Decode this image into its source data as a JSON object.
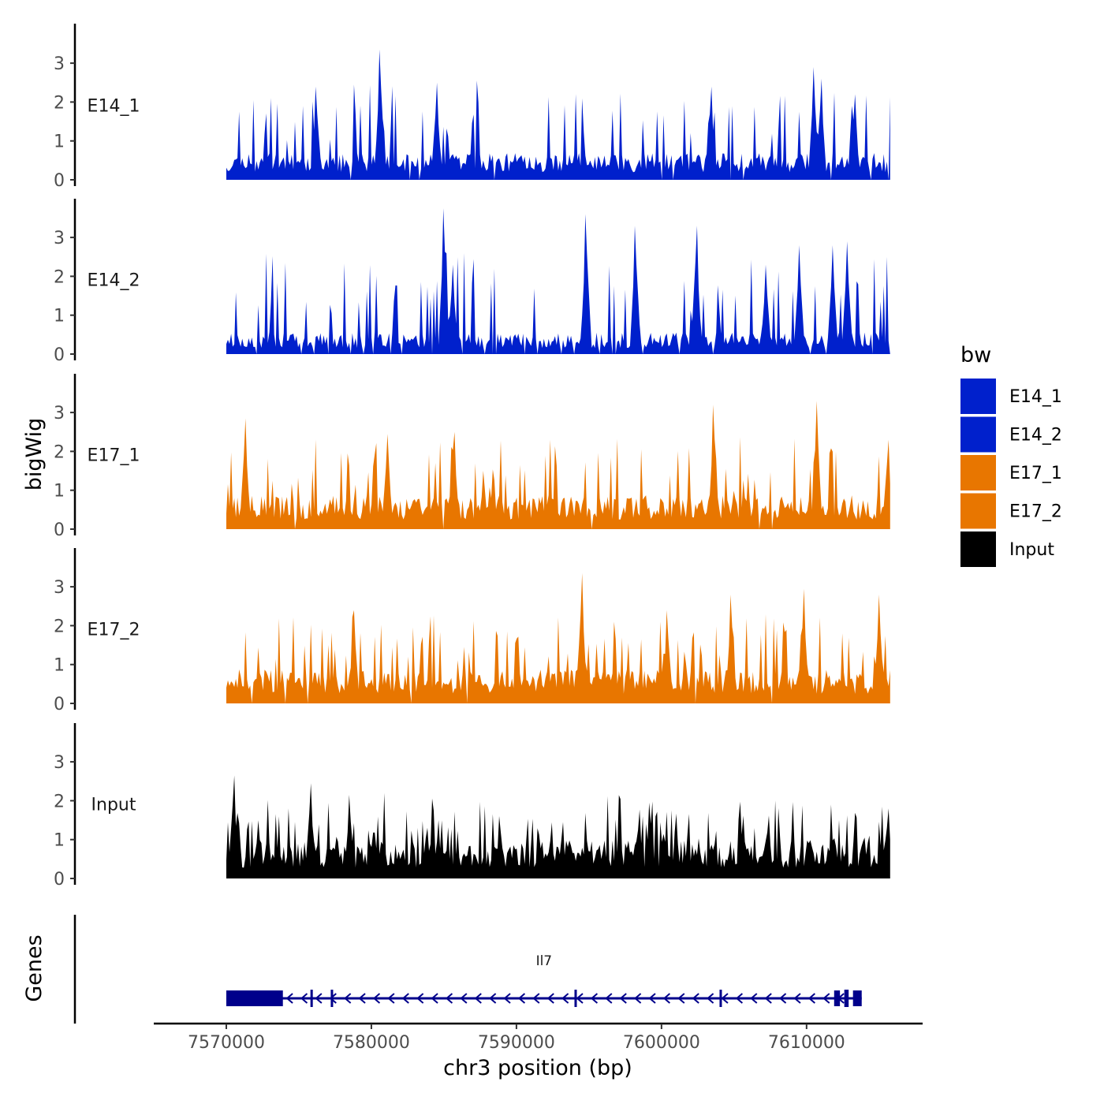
{
  "chart_data": {
    "type": "area",
    "chromosome": "chr3",
    "xlabel": "chr3 position (bp)",
    "ylabel": "bigWig",
    "genes_label": "Genes",
    "xlim": [
      7565000,
      7618000
    ],
    "data_x_range": [
      7570000,
      7615800
    ],
    "ylim": [
      0,
      3.9
    ],
    "x_ticks": [
      {
        "value": 7570000,
        "label": "7570000"
      },
      {
        "value": 7580000,
        "label": "7580000"
      },
      {
        "value": 7590000,
        "label": "7590000"
      },
      {
        "value": 7600000,
        "label": "7600000"
      },
      {
        "value": 7610000,
        "label": "7610000"
      }
    ],
    "y_ticks": [
      {
        "value": 0,
        "label": "0"
      },
      {
        "value": 1,
        "label": "1"
      },
      {
        "value": 2,
        "label": "2"
      },
      {
        "value": 3,
        "label": "3"
      }
    ],
    "legend": {
      "title": "bw",
      "entries": [
        {
          "name": "E14_1",
          "color": "#0020cc"
        },
        {
          "name": "E14_2",
          "color": "#0020cc"
        },
        {
          "name": "E17_1",
          "color": "#e87600"
        },
        {
          "name": "E17_2",
          "color": "#e87600"
        },
        {
          "name": "Input",
          "color": "#000000"
        }
      ]
    },
    "series": [
      {
        "name": "E14_1",
        "color": "#0020cc",
        "seed": 11,
        "base": 0.55,
        "peak_prob": 0.16,
        "peak_height": 1.2,
        "gap_prob": 0.03,
        "peaks": [
          [
            7580600,
            3.35
          ],
          [
            7584500,
            2.5
          ],
          [
            7576200,
            2.4
          ],
          [
            7603400,
            2.4
          ],
          [
            7610500,
            2.9
          ],
          [
            7611000,
            2.6
          ],
          [
            7613300,
            2.2
          ]
        ]
      },
      {
        "name": "E14_2",
        "color": "#0020cc",
        "seed": 23,
        "base": 0.45,
        "peak_prob": 0.14,
        "peak_height": 1.3,
        "gap_prob": 0.06,
        "peaks": [
          [
            7585000,
            3.75
          ],
          [
            7585600,
            2.3
          ],
          [
            7594800,
            3.6
          ],
          [
            7598200,
            3.3
          ],
          [
            7602400,
            3.3
          ],
          [
            7607200,
            2.3
          ],
          [
            7611800,
            2.8
          ],
          [
            7612800,
            2.9
          ],
          [
            7609500,
            2.8
          ]
        ]
      },
      {
        "name": "E17_1",
        "color": "#e87600",
        "seed": 37,
        "base": 0.7,
        "peak_prob": 0.16,
        "peak_height": 1.0,
        "gap_prob": 0.02,
        "peaks": [
          [
            7571300,
            2.85
          ],
          [
            7581100,
            2.45
          ],
          [
            7585700,
            2.5
          ],
          [
            7603600,
            3.2
          ],
          [
            7610700,
            3.3
          ],
          [
            7615600,
            2.3
          ]
        ]
      },
      {
        "name": "E17_2",
        "color": "#e87600",
        "seed": 51,
        "base": 0.7,
        "peak_prob": 0.16,
        "peak_height": 1.0,
        "gap_prob": 0.02,
        "peaks": [
          [
            7594500,
            3.35
          ],
          [
            7578800,
            2.4
          ],
          [
            7600400,
            2.4
          ],
          [
            7609800,
            2.95
          ],
          [
            7615000,
            2.8
          ],
          [
            7604800,
            2.8
          ]
        ]
      },
      {
        "name": "Input",
        "color": "#000000",
        "seed": 67,
        "base": 0.8,
        "peak_prob": 0.2,
        "peak_height": 0.8,
        "gap_prob": 0.0,
        "peaks": [
          [
            7570500,
            2.65
          ],
          [
            7575800,
            2.45
          ],
          [
            7578500,
            2.15
          ],
          [
            7599200,
            1.95
          ],
          [
            7615600,
            1.8
          ]
        ]
      }
    ],
    "gene": {
      "name": "Il7",
      "color": "#00008b",
      "strand": "-",
      "start": 7570000,
      "end": 7613800,
      "exons": [
        [
          7570000,
          7573900
        ],
        [
          7575800,
          7575950
        ],
        [
          7577200,
          7577300
        ],
        [
          7594000,
          7594100
        ],
        [
          7604000,
          7604100
        ],
        [
          7611900,
          7612300
        ],
        [
          7612600,
          7612900
        ],
        [
          7613200,
          7613800
        ]
      ]
    }
  }
}
